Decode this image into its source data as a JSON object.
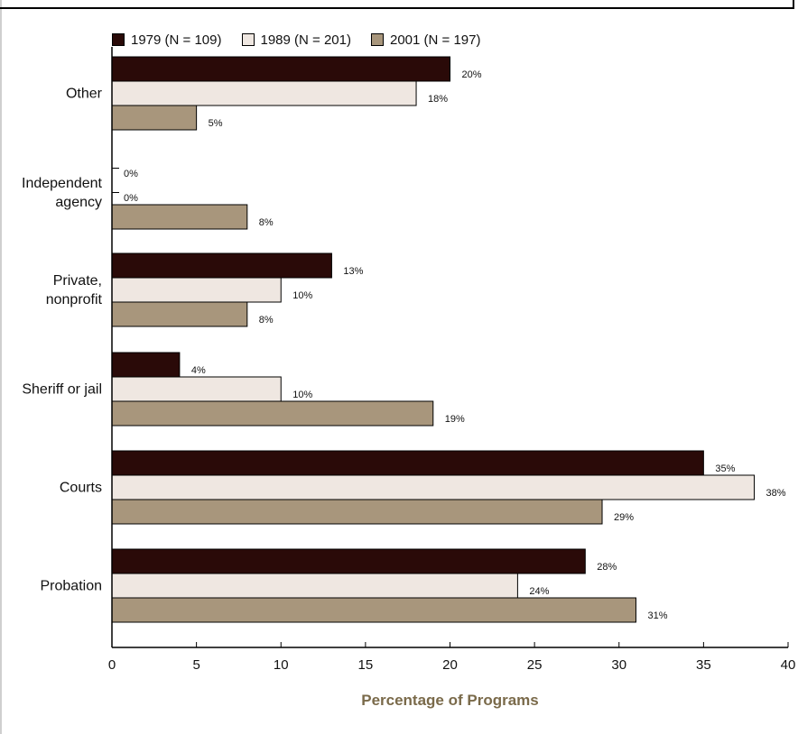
{
  "chart_data": {
    "type": "bar",
    "orientation": "horizontal",
    "categories": [
      "Other",
      "Independent agency",
      "Private, nonprofit",
      "Sheriff or jail",
      "Courts",
      "Probation"
    ],
    "category_lines": [
      [
        "Other"
      ],
      [
        "Independent",
        "agency"
      ],
      [
        "Private,",
        "nonprofit"
      ],
      [
        "Sheriff or jail"
      ],
      [
        "Courts"
      ],
      [
        "Probation"
      ]
    ],
    "series": [
      {
        "name": "1979",
        "n_label": "(N = 109)",
        "color": "#2a0a08",
        "values": [
          20,
          0,
          13,
          4,
          35,
          28
        ],
        "labels": [
          "20%",
          "0%",
          "13%",
          "4%",
          "35%",
          "28%"
        ]
      },
      {
        "name": "1989",
        "n_label": "(N = 201)",
        "color": "#efe7e1",
        "values": [
          18,
          0,
          10,
          10,
          38,
          24
        ],
        "labels": [
          "18%",
          "0%",
          "10%",
          "10%",
          "38%",
          "24%"
        ]
      },
      {
        "name": "2001",
        "n_label": "(N = 197)",
        "color": "#a8967c",
        "values": [
          5,
          8,
          8,
          19,
          29,
          31
        ],
        "labels": [
          "5%",
          "8%",
          "8%",
          "19%",
          "29%",
          "31%"
        ]
      }
    ],
    "xlabel": "Percentage of Programs",
    "xlim": [
      0,
      40
    ],
    "xticks": [
      "0",
      "5",
      "10",
      "15",
      "20",
      "25",
      "30",
      "35",
      "40"
    ],
    "legend_position": "top-left",
    "grid": false
  }
}
